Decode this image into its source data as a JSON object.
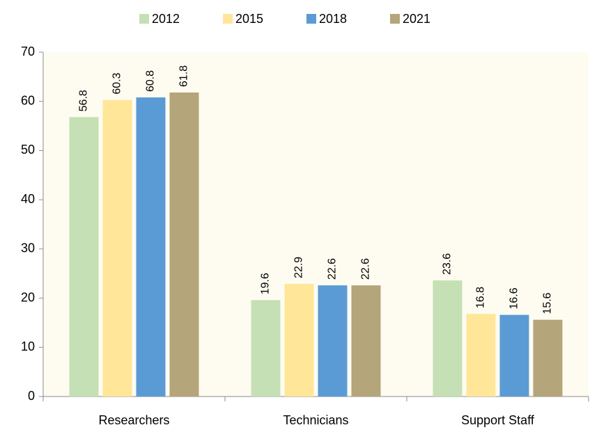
{
  "chart_data": {
    "type": "bar",
    "categories": [
      "Researchers",
      "Technicians",
      "Support Staff"
    ],
    "series": [
      {
        "name": "2012",
        "color": "#c5e0b4",
        "values": [
          56.8,
          19.6,
          23.6
        ]
      },
      {
        "name": "2015",
        "color": "#ffe699",
        "values": [
          60.3,
          22.9,
          16.8
        ]
      },
      {
        "name": "2018",
        "color": "#5b9bd5",
        "values": [
          60.8,
          22.6,
          16.6
        ]
      },
      {
        "name": "2021",
        "color": "#b4a57a",
        "values": [
          61.8,
          22.6,
          15.6
        ]
      }
    ],
    "ylim": [
      0,
      70
    ],
    "yticks": [
      0,
      10,
      20,
      30,
      40,
      50,
      60,
      70
    ],
    "grid": false,
    "legend": "top"
  }
}
